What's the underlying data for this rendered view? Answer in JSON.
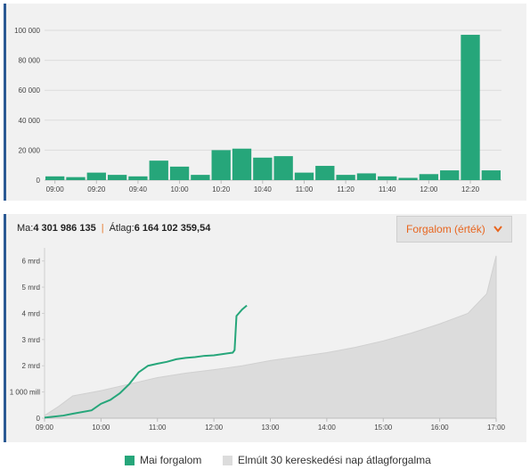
{
  "stats": {
    "today_label": "Ma:",
    "today_value": "4 301 986 135",
    "separator": "|",
    "avg_label": "Átlag:",
    "avg_value": "6 164 102 359,54"
  },
  "dropdown": {
    "label": "Forgalom (érték)"
  },
  "legend": {
    "today": "Mai forgalom",
    "avg": "Elmúlt 30 kereskedési nap átlagforgalma"
  },
  "colors": {
    "green": "#26a67a",
    "gray_area": "#dcdcdc",
    "accent": "#e8651e",
    "border": "#2b5a94"
  },
  "chart_data": [
    {
      "type": "bar",
      "title": "",
      "categories": [
        "09:00",
        "09:10",
        "09:20",
        "09:30",
        "09:40",
        "09:50",
        "10:00",
        "10:10",
        "10:20",
        "10:30",
        "10:40",
        "10:50",
        "11:00",
        "11:10",
        "11:20",
        "11:30",
        "11:40",
        "11:50",
        "12:00",
        "12:10",
        "12:20",
        "12:30"
      ],
      "values": [
        2500,
        2000,
        5000,
        3500,
        2500,
        13000,
        9000,
        3500,
        20000,
        21000,
        15000,
        16000,
        5000,
        9500,
        3500,
        4500,
        2500,
        1500,
        4000,
        6500,
        97000,
        6500
      ],
      "x_tick_labels": [
        "09:00",
        "09:20",
        "09:40",
        "10:00",
        "10:20",
        "10:40",
        "11:00",
        "11:20",
        "11:40",
        "12:00",
        "12:20"
      ],
      "y_tick_labels": [
        "0",
        "20 000",
        "40 000",
        "60 000",
        "80 000",
        "100 000"
      ],
      "y_ticks": [
        0,
        20000,
        40000,
        60000,
        80000,
        100000
      ],
      "ylim": [
        0,
        100000
      ],
      "grid": true
    },
    {
      "type": "area",
      "title": "",
      "x_range": [
        "09:00",
        "17:00"
      ],
      "x_tick_labels": [
        "09:00",
        "10:00",
        "11:00",
        "12:00",
        "13:00",
        "14:00",
        "15:00",
        "16:00",
        "17:00"
      ],
      "y_tick_labels": [
        "0",
        "1 000 mill",
        "2 mrd",
        "3 mrd",
        "4 mrd",
        "5 mrd",
        "6 mrd"
      ],
      "y_ticks": [
        0,
        1,
        2,
        3,
        4,
        5,
        6
      ],
      "ylim": [
        0,
        6.5
      ],
      "y_unit": "mrd",
      "series": [
        {
          "name": "Mai forgalom",
          "type": "line",
          "x": [
            "09:00",
            "09:20",
            "09:30",
            "09:50",
            "10:00",
            "10:10",
            "10:20",
            "10:30",
            "10:40",
            "10:50",
            "11:00",
            "11:10",
            "11:20",
            "11:30",
            "11:40",
            "11:50",
            "12:00",
            "12:10",
            "12:20",
            "12:22",
            "12:24",
            "12:30",
            "12:35"
          ],
          "y": [
            0.02,
            0.1,
            0.17,
            0.3,
            0.55,
            0.7,
            0.95,
            1.3,
            1.75,
            2.0,
            2.08,
            2.15,
            2.25,
            2.3,
            2.33,
            2.38,
            2.4,
            2.45,
            2.5,
            2.6,
            3.9,
            4.15,
            4.3
          ]
        },
        {
          "name": "Elmúlt 30 kereskedési nap átlagforgalma",
          "type": "area",
          "x": [
            "09:00",
            "09:15",
            "09:30",
            "10:00",
            "10:30",
            "11:00",
            "11:30",
            "12:00",
            "12:30",
            "13:00",
            "13:30",
            "14:00",
            "14:30",
            "15:00",
            "15:30",
            "16:00",
            "16:30",
            "16:50",
            "17:00"
          ],
          "y": [
            0.1,
            0.45,
            0.85,
            1.05,
            1.3,
            1.55,
            1.72,
            1.85,
            2.0,
            2.2,
            2.35,
            2.5,
            2.7,
            2.95,
            3.25,
            3.6,
            4.0,
            4.75,
            6.2
          ]
        }
      ],
      "grid": false
    }
  ]
}
